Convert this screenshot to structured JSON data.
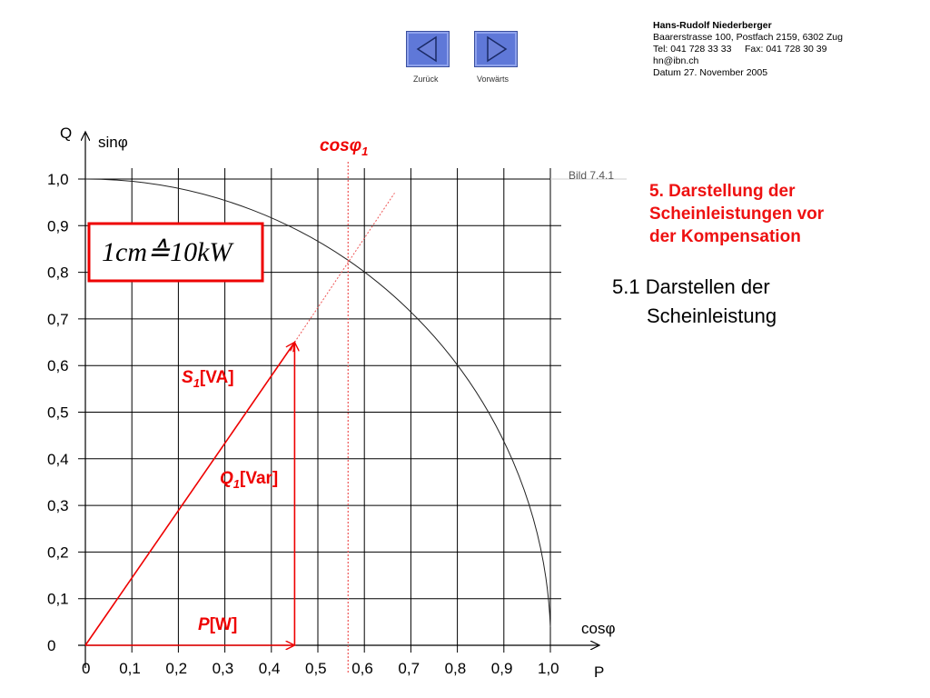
{
  "nav": {
    "back_label": "Zurück",
    "forward_label": "Vorwärts",
    "back_icon": "triangle-left-icon",
    "forward_icon": "triangle-right-icon",
    "button_color": "#5f78d8"
  },
  "author": {
    "name": "Hans-Rudolf Niederberger",
    "address": "Baarerstrasse 100, Postfach 2159, 6302 Zug",
    "phone": "Tel: 041 728 33 33     Fax: 041 728 30 39",
    "email": "hn@ibn.ch",
    "date": "Datum 27. November 2005"
  },
  "figure_ref": "Bild 7.4.1",
  "section_heading": {
    "line1": "5. Darstellung der",
    "line2": "Scheinleistungen vor",
    "line3": "der Kompensation"
  },
  "subheading": {
    "line1": "5.1 Darstellen der",
    "line2": "Scheinleistung"
  },
  "chart_data": {
    "type": "diagram",
    "x_ticks": [
      "0",
      "0,1",
      "0,2",
      "0,3",
      "0,4",
      "0,5",
      "0,6",
      "0,7",
      "0,8",
      "0,9",
      "1,0"
    ],
    "y_ticks": [
      "0",
      "0,1",
      "0,2",
      "0,3",
      "0,4",
      "0,5",
      "0,6",
      "0,7",
      "0,8",
      "0,9",
      "1,0"
    ],
    "x_axis_labels": {
      "top": "cosφ",
      "bottom": "P"
    },
    "y_axis_labels": {
      "left": "Q",
      "right": "sinφ"
    },
    "xlim": [
      0,
      1
    ],
    "ylim": [
      0,
      1
    ],
    "grid": true,
    "unit_circle": true,
    "cos_phi_line": {
      "label": "cosφ",
      "subscript": "1",
      "x": 0.565
    },
    "apparent_power_vector": {
      "label": "S",
      "subscript": "1",
      "unit": "[VA]",
      "x": 0.45,
      "y": 0.65
    },
    "reactive_power_vector": {
      "label": "Q",
      "subscript": "1",
      "unit": "[Var]"
    },
    "active_power_vector": {
      "label": "P",
      "unit": "[W]"
    },
    "extension_line_end": {
      "x": 0.665,
      "y": 0.97
    },
    "scale_note": "1cm≙10kW",
    "colors": {
      "vector": "#e00000",
      "grid": "#000000",
      "scale_box": "#e00000"
    }
  }
}
